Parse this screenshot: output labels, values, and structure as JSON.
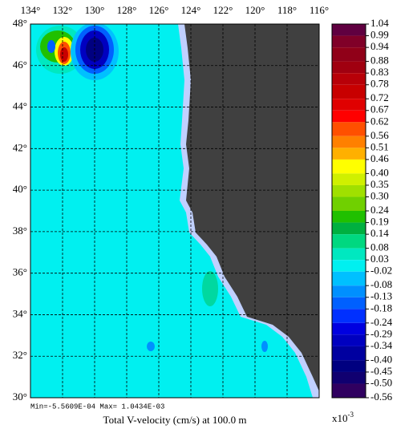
{
  "chart_data": {
    "type": "map",
    "title": "Total V-velocity (cm/s) at 100.0 m",
    "stats": "Min=-5.5609E-04  Max= 1.0434E-03",
    "xlim": [
      134,
      116
    ],
    "ylim": [
      30,
      48
    ],
    "xticks": [
      {
        "value": 134,
        "label": "134°"
      },
      {
        "value": 132,
        "label": "132°"
      },
      {
        "value": 130,
        "label": "130°"
      },
      {
        "value": 128,
        "label": "128°"
      },
      {
        "value": 126,
        "label": "126°"
      },
      {
        "value": 124,
        "label": "124°"
      },
      {
        "value": 122,
        "label": "122°"
      },
      {
        "value": 120,
        "label": "120°"
      },
      {
        "value": 118,
        "label": "118°"
      },
      {
        "value": 116,
        "label": "116°"
      }
    ],
    "yticks": [
      {
        "value": 48,
        "label": "48°"
      },
      {
        "value": 46,
        "label": "46°"
      },
      {
        "value": 44,
        "label": "44°"
      },
      {
        "value": 42,
        "label": "42°"
      },
      {
        "value": 40,
        "label": "40°"
      },
      {
        "value": 38,
        "label": "38°"
      },
      {
        "value": 36,
        "label": "36°"
      },
      {
        "value": 34,
        "label": "34°"
      },
      {
        "value": 32,
        "label": "32°"
      },
      {
        "value": 30,
        "label": "30°"
      }
    ],
    "grid": true,
    "colorbar": {
      "lim": [
        -0.56,
        1.04
      ],
      "ticks": [
        1.04,
        0.99,
        0.94,
        0.88,
        0.83,
        0.78,
        0.72,
        0.67,
        0.62,
        0.56,
        0.51,
        0.46,
        {
          "value": 0.4,
          "label": "0.40"
        },
        0.35,
        {
          "value": 0.3,
          "label": "0.30"
        },
        0.24,
        0.19,
        0.14,
        0.08,
        0.03,
        -0.02,
        -0.08,
        -0.13,
        -0.18,
        -0.24,
        -0.29,
        -0.34,
        {
          "value": -0.4,
          "label": "-0.40"
        },
        -0.45,
        {
          "value": -0.5,
          "label": "-0.50"
        },
        -0.56
      ],
      "colors": [
        "#600040",
        "#800028",
        "#900018",
        "#a00010",
        "#b80008",
        "#c80000",
        "#e00000",
        "#ff0000",
        "#ff5000",
        "#ff8000",
        "#ffb000",
        "#ffff00",
        "#d0f000",
        "#a0e000",
        "#70d000",
        "#20c000",
        "#00b040",
        "#00d880",
        "#00e8c0",
        "#00f0f0",
        "#00c0ff",
        "#0090ff",
        "#0060ff",
        "#0030ff",
        "#0000e0",
        "#0000c0",
        "#0000a0",
        "#000080",
        "#100070",
        "#300060"
      ],
      "multiplier_base": "x10",
      "multiplier_exponent": "-3"
    }
  }
}
